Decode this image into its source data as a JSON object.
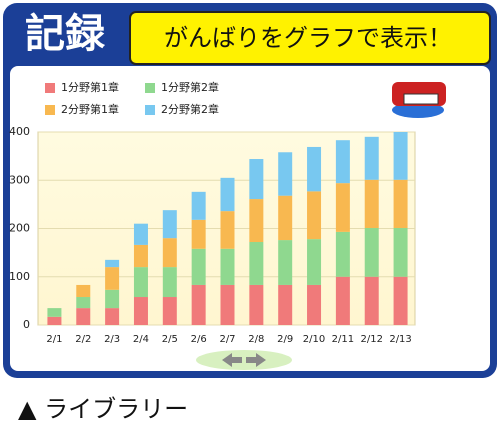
{
  "header": {
    "badge": "記録",
    "title": "がんばりをグラフで表示！"
  },
  "caption": "▲ ライブラリー",
  "chart_data": {
    "type": "stacked_bar",
    "categories": [
      "2/1",
      "2/2",
      "2/3",
      "2/4",
      "2/5",
      "2/6",
      "2/7",
      "2/8",
      "2/9",
      "2/10",
      "2/11",
      "2/12",
      "2/13"
    ],
    "series": [
      {
        "name": "1分野第1章",
        "color": "#f07a7a",
        "values": [
          17,
          35,
          35,
          58,
          58,
          83,
          83,
          83,
          83,
          83,
          100,
          100,
          100
        ]
      },
      {
        "name": "1分野第2章",
        "color": "#8fd88f",
        "values": [
          18,
          23,
          38,
          62,
          62,
          75,
          75,
          89,
          93,
          95,
          93,
          101,
          101
        ]
      },
      {
        "name": "2分野第1章",
        "color": "#f8b850",
        "values": [
          0,
          25,
          47,
          46,
          60,
          60,
          78,
          89,
          92,
          99,
          101,
          100,
          100
        ]
      },
      {
        "name": "2分野第2章",
        "color": "#78c8f0",
        "values": [
          0,
          0,
          15,
          44,
          58,
          58,
          69,
          83,
          90,
          92,
          89,
          89,
          99
        ]
      }
    ],
    "ylim": [
      0,
      400
    ],
    "yticks": [
      0,
      100,
      200,
      300,
      400
    ],
    "grid": true
  }
}
